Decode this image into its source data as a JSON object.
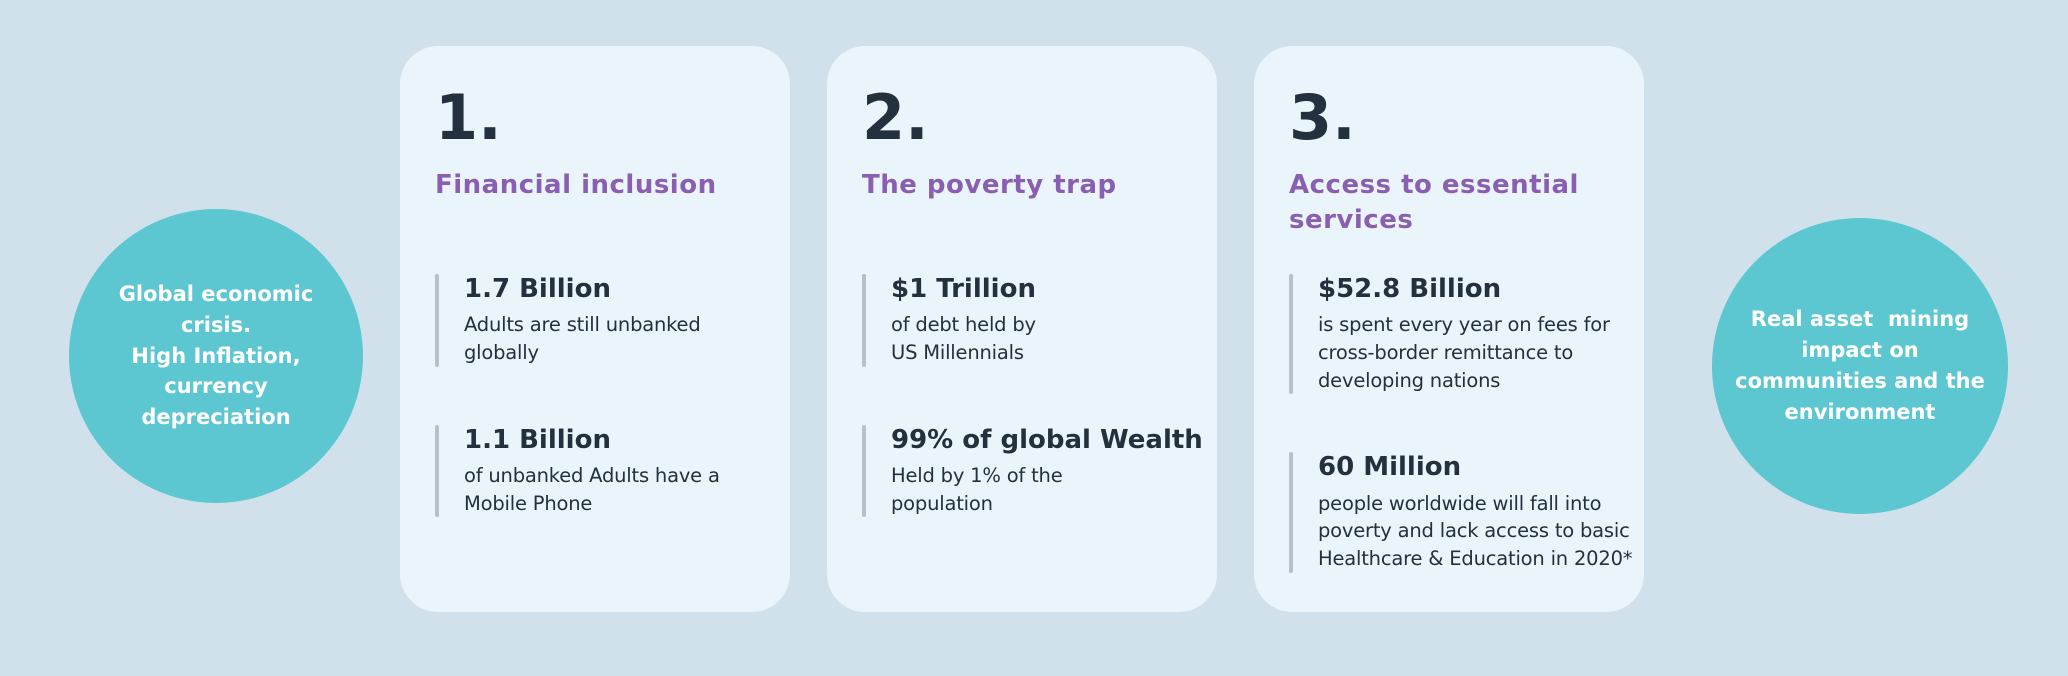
{
  "colors": {
    "background": "#d0e1ec",
    "card_background": "#e9f4fb",
    "accent_teal": "#5cc6d1",
    "heading_purple": "#8a5eb0",
    "text_dark": "#22313d",
    "stat_bar_gray": "#b5c0c7",
    "circle_text": "#ffffff"
  },
  "left_circle": {
    "text": "Global economic\ncrisis.\nHigh Inflation,\ncurrency\ndepreciation"
  },
  "right_circle": {
    "text": "Real asset  mining\nimpact on\ncommunities and the\nenvironment"
  },
  "cards": [
    {
      "number": "1.",
      "heading": "Financial inclusion",
      "stats": [
        {
          "value": "1.7 Billion",
          "desc": "Adults are still unbanked\nglobally"
        },
        {
          "value": "1.1 Billion",
          "desc": "of unbanked Adults have a\nMobile Phone"
        }
      ]
    },
    {
      "number": "2.",
      "heading": "The poverty trap",
      "stats": [
        {
          "value": "$1 Trillion",
          "desc": "of debt held by\nUS Millennials"
        },
        {
          "value": "99% of global Wealth",
          "desc": "Held by 1% of the\npopulation"
        }
      ]
    },
    {
      "number": "3.",
      "heading": "Access to essential\nservices",
      "stats": [
        {
          "value": "$52.8 Billion",
          "desc": "is spent every year on fees for\ncross-border remittance to\ndeveloping nations"
        },
        {
          "value": "60 Million",
          "desc": "people worldwide will fall into\npoverty and lack access to basic\nHealthcare & Education in 2020*"
        }
      ]
    }
  ]
}
